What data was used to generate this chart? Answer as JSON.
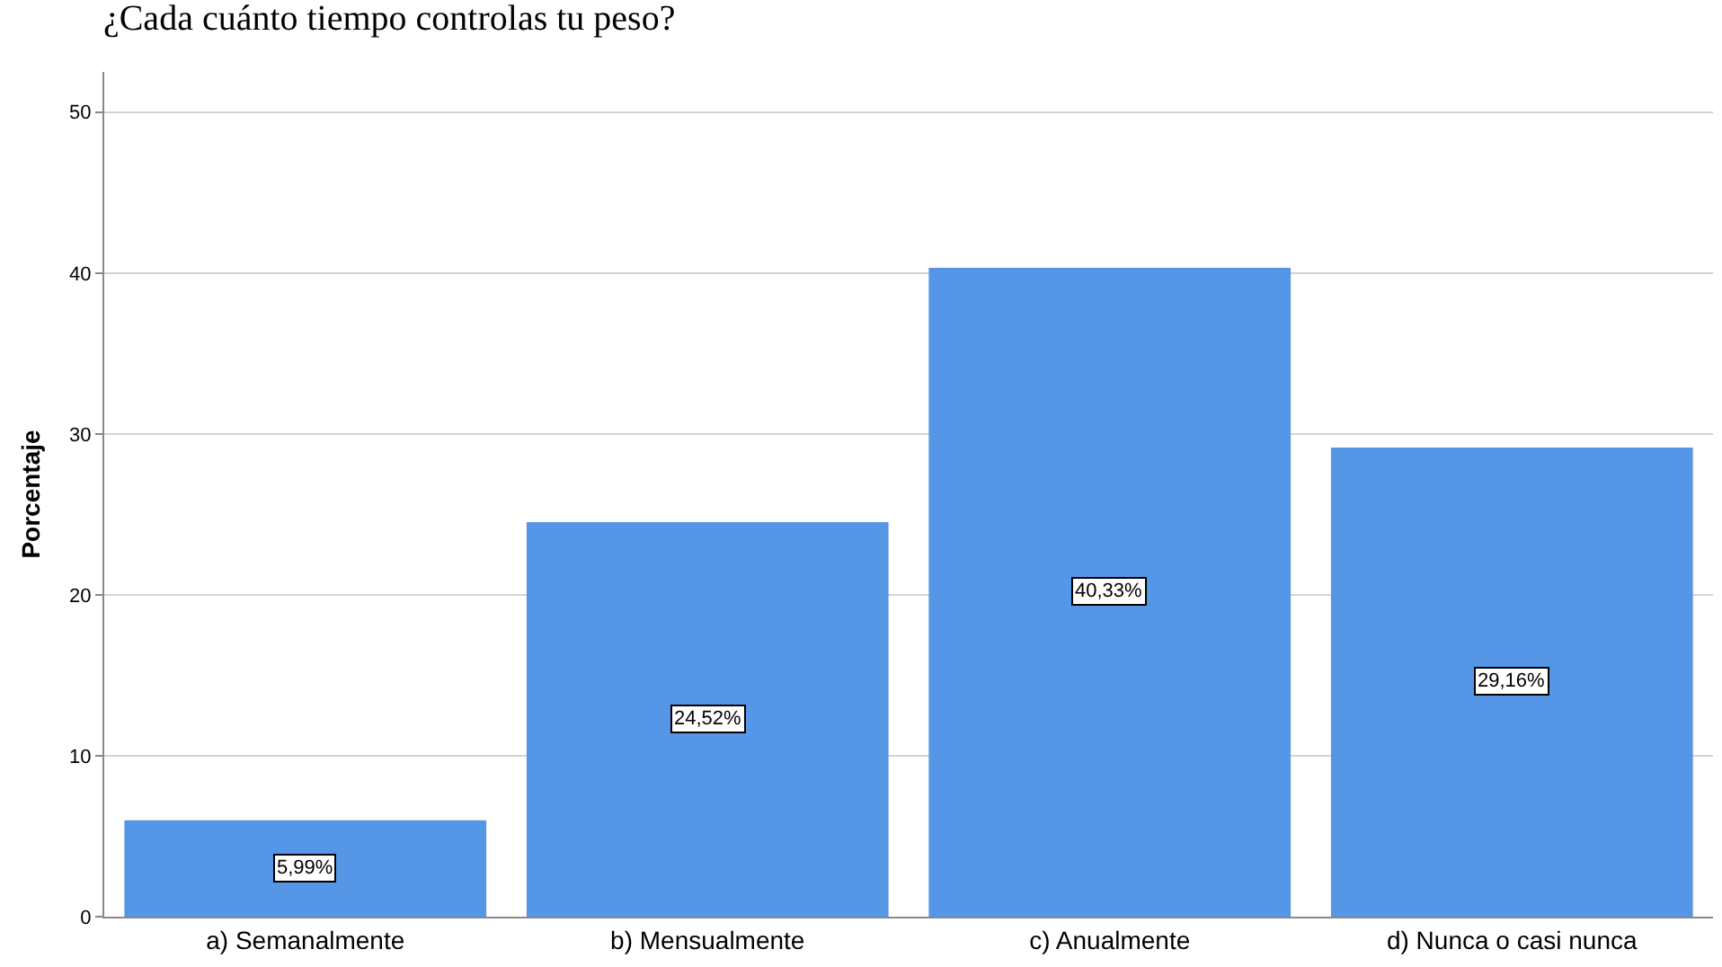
{
  "chart_data": {
    "type": "bar",
    "title": "¿Cada cuánto tiempo controlas tu peso?",
    "ylabel": "Porcentaje",
    "categories": [
      "a) Semanalmente",
      "b) Mensualmente",
      "c) Anualmente",
      "d) Nunca o casi nunca"
    ],
    "values": [
      5.99,
      24.52,
      40.33,
      29.16
    ],
    "value_labels": [
      "5,99%",
      "24,52%",
      "40,33%",
      "29,16%"
    ],
    "color": "#5596e6",
    "ylim": [
      0,
      52.5
    ],
    "yticks": [
      0,
      10,
      20,
      30,
      40,
      50
    ],
    "grid": "y"
  }
}
